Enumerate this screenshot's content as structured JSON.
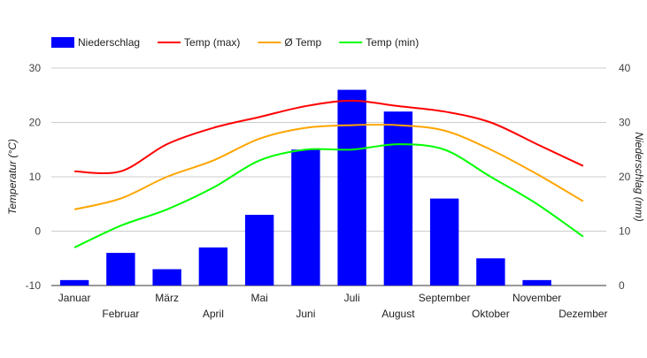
{
  "chart_data": {
    "type": "bar",
    "categories": [
      "Januar",
      "Februar",
      "März",
      "April",
      "Mai",
      "Juni",
      "Juli",
      "August",
      "September",
      "Oktober",
      "November",
      "Dezember"
    ],
    "legend": {
      "position": "top-left",
      "items": [
        {
          "label": "Niederschlag",
          "color": "#0000ff",
          "kind": "bar"
        },
        {
          "label": "Temp (max)",
          "color": "#ff0000",
          "kind": "line"
        },
        {
          "label": "Ø Temp",
          "color": "#ffa500",
          "kind": "line"
        },
        {
          "label": "Temp (min)",
          "color": "#00ff00",
          "kind": "line"
        }
      ]
    },
    "y_left": {
      "label": "Temperatur (°C)",
      "ticks": [
        "30",
        "20",
        "10",
        "0",
        "-10"
      ],
      "min": -10,
      "max": 30,
      "gridlines": true
    },
    "y_right": {
      "label": "Niederschlag (mm)",
      "ticks": [
        "40",
        "30",
        "20",
        "10",
        "0"
      ],
      "min": 0,
      "max": 40
    },
    "bars": {
      "name": "Niederschlag",
      "axis": "right",
      "color": "#0000ff",
      "values": [
        1,
        6,
        3,
        7,
        13,
        25,
        36,
        32,
        16,
        5,
        1,
        0
      ]
    },
    "series": [
      {
        "name": "Temp (max)",
        "axis": "left",
        "color": "#ff0000",
        "values": [
          11,
          11,
          16,
          19,
          21,
          23,
          24,
          23,
          22,
          20,
          16,
          12
        ]
      },
      {
        "name": "Ø Temp",
        "axis": "left",
        "color": "#ffa500",
        "values": [
          4,
          6,
          10,
          13,
          17,
          19,
          19.5,
          19.5,
          18.5,
          15,
          10.5,
          5.5
        ]
      },
      {
        "name": "Temp (min)",
        "axis": "left",
        "color": "#00ff00",
        "values": [
          -3,
          1,
          4,
          8,
          13,
          15,
          15,
          16,
          15,
          10,
          5,
          -1
        ]
      }
    ]
  }
}
